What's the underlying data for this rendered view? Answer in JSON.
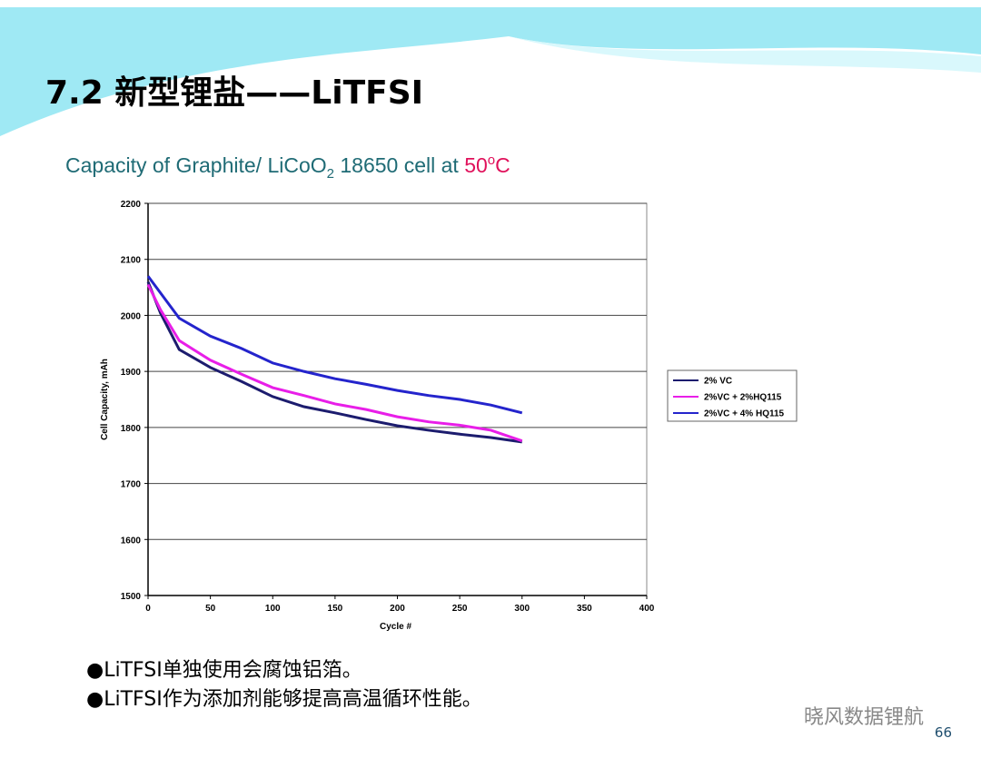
{
  "slide_title": "7.2 新型锂盐——LiTFSI",
  "chart_data": {
    "type": "line",
    "title_parts": [
      "Capacity of Graphite/ LiCoO",
      "2",
      " 18650 cell at ",
      "50",
      "o",
      "C"
    ],
    "x_label": "Cycle #",
    "y_label": "Cell Capacity, mAh",
    "x": [
      0,
      10,
      25,
      50,
      75,
      100,
      125,
      150,
      175,
      200,
      225,
      250,
      275,
      300
    ],
    "series": [
      {
        "name": "2% VC",
        "color": "#1c1c6e",
        "values": [
          2060,
          2004,
          1939,
          1907,
          1882,
          1855,
          1837,
          1826,
          1814,
          1803,
          1795,
          1788,
          1782,
          1774
        ]
      },
      {
        "name": "2%VC + 2%HQ115",
        "color": "#e81ee8",
        "values": [
          2055,
          2010,
          1955,
          1920,
          1895,
          1871,
          1857,
          1842,
          1832,
          1819,
          1810,
          1804,
          1795,
          1776
        ]
      },
      {
        "name": "2%VC + 4% HQ115",
        "color": "#2424cc",
        "values": [
          2070,
          2040,
          1995,
          1963,
          1941,
          1915,
          1900,
          1887,
          1877,
          1866,
          1857,
          1850,
          1840,
          1826
        ]
      }
    ],
    "xlim": [
      0,
      400
    ],
    "xticks": [
      0,
      50,
      100,
      150,
      200,
      250,
      300,
      350,
      400
    ],
    "ylim": [
      1500,
      2200
    ],
    "yticks": [
      1500,
      1600,
      1700,
      1800,
      1900,
      2000,
      2100,
      2200
    ],
    "grid": true,
    "legend": "right"
  },
  "bullets": [
    "●LiTFSI单独使用会腐蚀铝箔。",
    "●LiTFSI作为添加剂能够提高高温循环性能。"
  ],
  "watermark": "晓风数据锂航",
  "page_number": "66"
}
